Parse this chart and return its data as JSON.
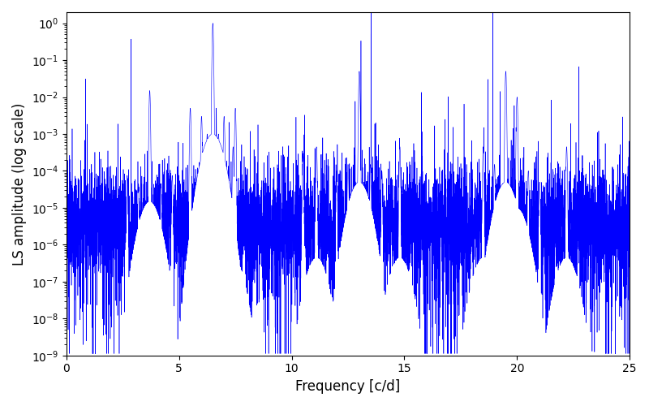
{
  "title": "",
  "xlabel": "Frequency [c/d]",
  "ylabel": "LS amplitude (log scale)",
  "line_color": "#0000ff",
  "xlim": [
    0,
    25
  ],
  "ylim_log": [
    -9,
    0.3
  ],
  "background_color": "#ffffff",
  "figsize": [
    8.0,
    5.0
  ],
  "dpi": 100,
  "xticks": [
    0,
    5,
    10,
    15,
    20,
    25
  ],
  "peaks": [
    {
      "freq": 3.7,
      "amplitude": 0.015,
      "harmonics": [
        7.4,
        11.1,
        14.8,
        18.5,
        22.2
      ],
      "harm_decay": 0.03
    },
    {
      "freq": 6.5,
      "amplitude": 1.0,
      "harmonics": [
        13.0,
        19.5
      ],
      "harm_decay": 0.05
    },
    {
      "freq": 10.5,
      "amplitude": 0.0003,
      "harmonics": [],
      "harm_decay": 0.0
    },
    {
      "freq": 20.0,
      "amplitude": 0.01,
      "harmonics": [],
      "harm_decay": 0.0
    }
  ],
  "noise_baseline_log": -5.3,
  "noise_spike_std": 1.8,
  "noise_density": 8000,
  "seed": 123
}
